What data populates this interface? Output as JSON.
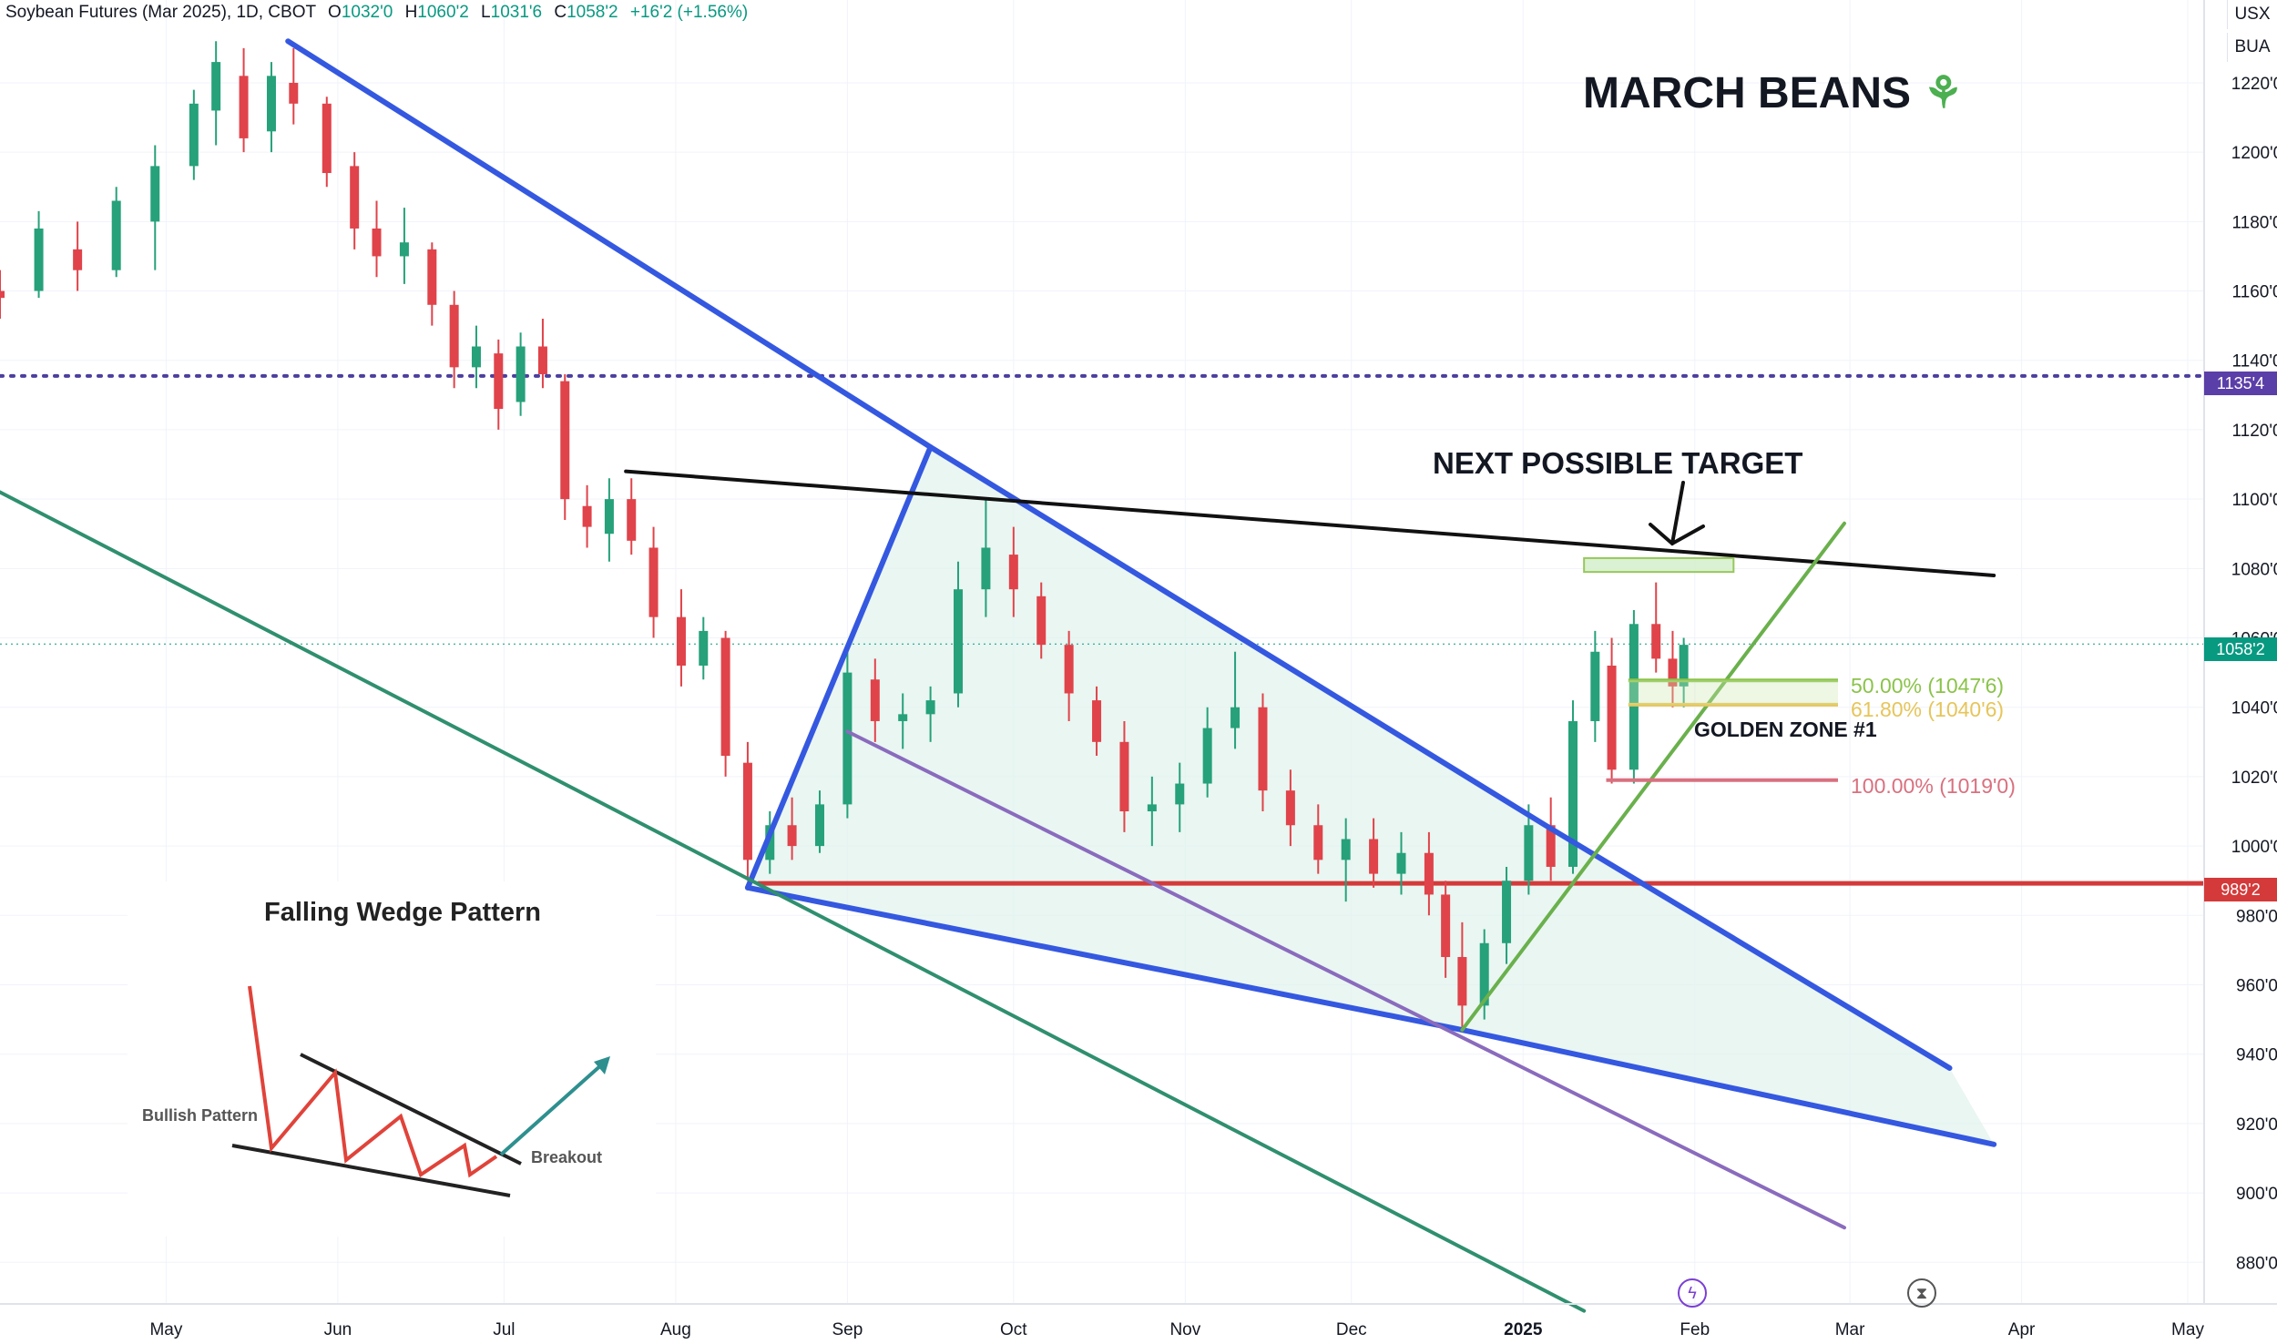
{
  "header": {
    "symbol": "Soybean Futures (Mar 2025), 1D, CBOT",
    "open_label": "O",
    "open": "1032'0",
    "high_label": "H",
    "high": "1060'2",
    "low_label": "L",
    "low": "1031'6",
    "close_label": "C",
    "close": "1058'2",
    "change": "+16'2 (+1.56%)"
  },
  "badges": {
    "currency": "USX",
    "unit": "BUA"
  },
  "annotations": {
    "title": "MARCH BEANS",
    "title_icon": "sprout-icon",
    "target": "NEXT POSSIBLE TARGET",
    "golden_zone": "GOLDEN ZONE #1"
  },
  "fib_levels": [
    {
      "label": "50.00% (1047'6)",
      "price": 1047.75,
      "color": "#8bc34a"
    },
    {
      "label": "61.80% (1040'6)",
      "price": 1040.75,
      "color": "#e6c55a"
    },
    {
      "label": "100.00% (1019'0)",
      "price": 1019.0,
      "color": "#d9707f"
    }
  ],
  "price_tags": [
    {
      "label": "1135'4",
      "price": 1135.5,
      "color": "#5b3fa8"
    },
    {
      "label": "1058'2",
      "price": 1058.25,
      "color": "#089981"
    },
    {
      "label": "989'2",
      "price": 989.25,
      "color": "#d43a3a"
    }
  ],
  "inset": {
    "title": "Falling Wedge Pattern",
    "bullish": "Bullish Pattern",
    "breakout": "Breakout"
  },
  "footer_icons": [
    "lightning-icon",
    "hourglass-icon"
  ],
  "colors": {
    "up": "#26a17a",
    "down": "#e0434a",
    "wedge": "#3558e0",
    "wedge_fill": "#dff2ec"
  },
  "chart_data": {
    "type": "candlestick",
    "title": "Soybean Futures (Mar 2025), 1D, CBOT",
    "ylim": [
      868,
      1236
    ],
    "y_ticks": [
      "880'0",
      "900'0",
      "920'0",
      "940'0",
      "960'0",
      "980'0",
      "1000'0",
      "1020'0",
      "1040'0",
      "1060'0",
      "1080'0",
      "1100'0",
      "1120'0",
      "1140'0",
      "1160'0",
      "1180'0",
      "1200'0",
      "1220'0"
    ],
    "y_tick_values": [
      880,
      900,
      920,
      940,
      960,
      980,
      1000,
      1020,
      1040,
      1060,
      1080,
      1100,
      1120,
      1140,
      1160,
      1180,
      1200,
      1220
    ],
    "x_ticks": [
      "May",
      "Jun",
      "Jul",
      "Aug",
      "Sep",
      "Oct",
      "Nov",
      "Dec",
      "2025",
      "Feb",
      "Mar",
      "Apr",
      "May"
    ],
    "x_tick_dates": [
      "2024-05-01",
      "2024-06-01",
      "2024-07-01",
      "2024-08-01",
      "2024-09-01",
      "2024-10-01",
      "2024-11-01",
      "2024-12-01",
      "2025-01-01",
      "2025-02-01",
      "2025-03-01",
      "2025-04-01",
      "2025-05-01"
    ],
    "grid": true,
    "horizontal_lines": [
      {
        "price": 1135.5,
        "style": "dotted",
        "color": "#4b3f9e"
      },
      {
        "price": 989.25,
        "style": "solid",
        "color": "#d43a3a",
        "from": "2024-08-16"
      }
    ],
    "trendlines": [
      {
        "name": "wedge-upper",
        "color": "#3558e0",
        "points": [
          [
            "2024-05-23",
            1232
          ],
          [
            "2024-09-16",
            1115
          ],
          [
            "2025-01-05",
            1006
          ],
          [
            "2025-03-19",
            936
          ]
        ]
      },
      {
        "name": "wedge-lower",
        "color": "#3558e0",
        "points": [
          [
            "2024-08-14",
            988
          ],
          [
            "2024-12-21",
            947
          ],
          [
            "2025-03-27",
            914
          ]
        ]
      },
      {
        "name": "wedge-left",
        "color": "#3558e0",
        "points": [
          [
            "2024-08-14",
            988
          ],
          [
            "2024-09-16",
            1115
          ]
        ]
      },
      {
        "name": "resistance",
        "color": "#111111",
        "points": [
          [
            "2024-07-23",
            1108
          ],
          [
            "2025-03-27",
            1078
          ]
        ]
      },
      {
        "name": "green-support",
        "color": "#6ab04c",
        "points": [
          [
            "2024-12-21",
            947
          ],
          [
            "2025-02-28",
            1093
          ]
        ]
      },
      {
        "name": "purple-channel",
        "color": "#8a6bbd",
        "points": [
          [
            "2024-09-01",
            1033
          ],
          [
            "2025-02-28",
            890
          ]
        ]
      },
      {
        "name": "teal-channel",
        "color": "#2f8f6e",
        "points": [
          [
            "2024-04-01",
            1102
          ],
          [
            "2025-01-12",
            866
          ]
        ]
      }
    ],
    "target_box": {
      "from": "2025-01-12",
      "to": "2025-02-08",
      "low": 1079,
      "high": 1083
    },
    "candles": [
      [
        "2024-04-01",
        1160,
        1166,
        1152,
        1158
      ],
      [
        "2024-04-08",
        1160,
        1183,
        1158,
        1178
      ],
      [
        "2024-04-15",
        1172,
        1180,
        1160,
        1166
      ],
      [
        "2024-04-22",
        1166,
        1190,
        1164,
        1186
      ],
      [
        "2024-04-29",
        1180,
        1202,
        1166,
        1196
      ],
      [
        "2024-05-06",
        1196,
        1218,
        1192,
        1214
      ],
      [
        "2024-05-10",
        1212,
        1232,
        1202,
        1226
      ],
      [
        "2024-05-15",
        1222,
        1230,
        1200,
        1204
      ],
      [
        "2024-05-20",
        1206,
        1226,
        1200,
        1222
      ],
      [
        "2024-05-24",
        1220,
        1230,
        1208,
        1214
      ],
      [
        "2024-05-30",
        1214,
        1216,
        1190,
        1194
      ],
      [
        "2024-06-04",
        1196,
        1200,
        1172,
        1178
      ],
      [
        "2024-06-08",
        1178,
        1186,
        1164,
        1170
      ],
      [
        "2024-06-13",
        1170,
        1184,
        1162,
        1174
      ],
      [
        "2024-06-18",
        1172,
        1174,
        1150,
        1156
      ],
      [
        "2024-06-22",
        1156,
        1160,
        1132,
        1138
      ],
      [
        "2024-06-26",
        1138,
        1150,
        1132,
        1144
      ],
      [
        "2024-06-30",
        1142,
        1146,
        1120,
        1126
      ],
      [
        "2024-07-04",
        1128,
        1148,
        1124,
        1144
      ],
      [
        "2024-07-08",
        1144,
        1152,
        1132,
        1136
      ],
      [
        "2024-07-12",
        1134,
        1136,
        1094,
        1100
      ],
      [
        "2024-07-16",
        1098,
        1104,
        1086,
        1092
      ],
      [
        "2024-07-20",
        1090,
        1106,
        1082,
        1100
      ],
      [
        "2024-07-24",
        1100,
        1106,
        1084,
        1088
      ],
      [
        "2024-07-28",
        1086,
        1092,
        1060,
        1066
      ],
      [
        "2024-08-02",
        1066,
        1074,
        1046,
        1052
      ],
      [
        "2024-08-06",
        1052,
        1066,
        1048,
        1062
      ],
      [
        "2024-08-10",
        1060,
        1062,
        1020,
        1026
      ],
      [
        "2024-08-14",
        1024,
        1030,
        990,
        996
      ],
      [
        "2024-08-18",
        996,
        1010,
        992,
        1006
      ],
      [
        "2024-08-22",
        1006,
        1014,
        996,
        1000
      ],
      [
        "2024-08-27",
        1000,
        1016,
        998,
        1012
      ],
      [
        "2024-09-01",
        1012,
        1056,
        1008,
        1050
      ],
      [
        "2024-09-06",
        1048,
        1054,
        1030,
        1036
      ],
      [
        "2024-09-11",
        1036,
        1044,
        1028,
        1038
      ],
      [
        "2024-09-16",
        1038,
        1046,
        1030,
        1042
      ],
      [
        "2024-09-21",
        1044,
        1082,
        1040,
        1074
      ],
      [
        "2024-09-26",
        1074,
        1100,
        1066,
        1086
      ],
      [
        "2024-10-01",
        1084,
        1092,
        1066,
        1074
      ],
      [
        "2024-10-06",
        1072,
        1076,
        1054,
        1058
      ],
      [
        "2024-10-11",
        1058,
        1062,
        1036,
        1044
      ],
      [
        "2024-10-16",
        1042,
        1046,
        1026,
        1030
      ],
      [
        "2024-10-21",
        1030,
        1036,
        1004,
        1010
      ],
      [
        "2024-10-26",
        1010,
        1020,
        1000,
        1012
      ],
      [
        "2024-10-31",
        1012,
        1024,
        1004,
        1018
      ],
      [
        "2024-11-05",
        1018,
        1040,
        1014,
        1034
      ],
      [
        "2024-11-10",
        1034,
        1056,
        1028,
        1040
      ],
      [
        "2024-11-15",
        1040,
        1044,
        1010,
        1016
      ],
      [
        "2024-11-20",
        1016,
        1022,
        1000,
        1006
      ],
      [
        "2024-11-25",
        1006,
        1012,
        992,
        996
      ],
      [
        "2024-11-30",
        996,
        1008,
        984,
        1002
      ],
      [
        "2024-12-05",
        1002,
        1008,
        988,
        992
      ],
      [
        "2024-12-10",
        992,
        1004,
        986,
        998
      ],
      [
        "2024-12-15",
        998,
        1004,
        980,
        986
      ],
      [
        "2024-12-18",
        986,
        990,
        962,
        968
      ],
      [
        "2024-12-21",
        968,
        978,
        947,
        954
      ],
      [
        "2024-12-25",
        954,
        976,
        950,
        972
      ],
      [
        "2024-12-29",
        972,
        994,
        966,
        990
      ],
      [
        "2025-01-02",
        990,
        1012,
        986,
        1006
      ],
      [
        "2025-01-06",
        1006,
        1014,
        990,
        994
      ],
      [
        "2025-01-10",
        994,
        1042,
        992,
        1036
      ],
      [
        "2025-01-14",
        1036,
        1062,
        1030,
        1056
      ],
      [
        "2025-01-17",
        1052,
        1060,
        1018,
        1022
      ],
      [
        "2025-01-21",
        1022,
        1068,
        1018,
        1064
      ],
      [
        "2025-01-25",
        1064,
        1076,
        1050,
        1054
      ],
      [
        "2025-01-28",
        1054,
        1062,
        1040,
        1046
      ],
      [
        "2025-01-30",
        1046,
        1060,
        1040,
        1058
      ]
    ]
  }
}
